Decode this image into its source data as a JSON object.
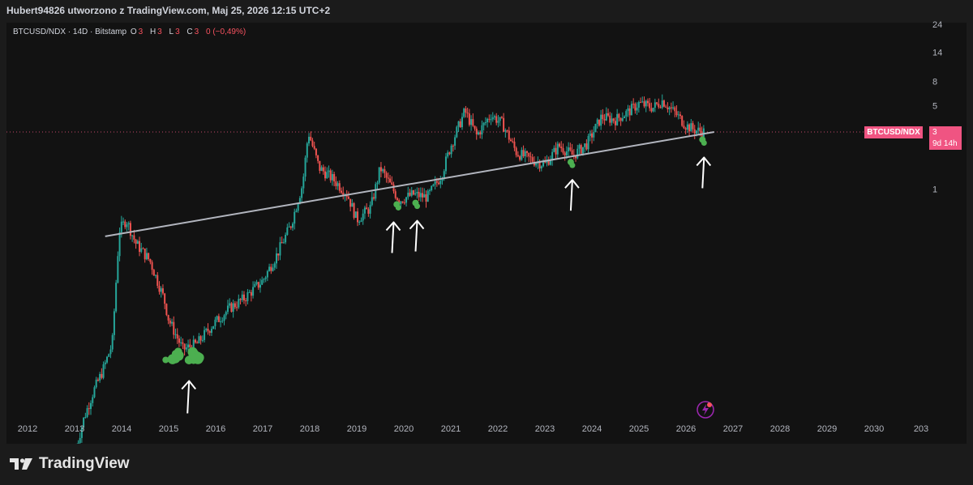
{
  "header": {
    "title": "Hubert94826 utworzono z TradingView.com, Maj 25, 2026 12:15 UTC+2"
  },
  "legend": {
    "symbol": "BTCUSD/NDX · 14D · Bitstamp",
    "open_label": "O",
    "open_value": "3",
    "high_label": "H",
    "high_value": "3",
    "low_label": "L",
    "low_value": "3",
    "close_label": "C",
    "close_value": "3",
    "change": "0 (−0,49%)"
  },
  "price_label": {
    "symbol": "BTCUSD/NDX",
    "price": "3",
    "countdown": "9d 14h"
  },
  "brand": {
    "name": "TradingView"
  },
  "colors": {
    "up": "#26a69a",
    "down": "#ef5350",
    "trendline": "#b2b5be",
    "marker": "#4caf50",
    "price_line": "#f05482",
    "label_bg": "#f05482"
  },
  "chart_data": {
    "type": "candlestick",
    "interval": "14D",
    "y_scale": "log",
    "y_ticks": [
      {
        "value": 24,
        "label": "24"
      },
      {
        "value": 14,
        "label": "14"
      },
      {
        "value": 8,
        "label": "8"
      },
      {
        "value": 5,
        "label": "5"
      },
      {
        "value": 3,
        "label": "3"
      },
      {
        "value": 1,
        "label": "1"
      }
    ],
    "x_ticks": [
      "2012",
      "2013",
      "2014",
      "2015",
      "2016",
      "2017",
      "2018",
      "2019",
      "2020",
      "2021",
      "2022",
      "2023",
      "2024",
      "2025",
      "2026",
      "2027",
      "2028",
      "2029",
      "2030",
      "203"
    ],
    "x_range": [
      2012,
      2031
    ],
    "price_line_value": 3,
    "price_path": [
      [
        2013.0,
        0.006
      ],
      [
        2013.2,
        0.012
      ],
      [
        2013.4,
        0.02
      ],
      [
        2013.6,
        0.03
      ],
      [
        2013.8,
        0.05
      ],
      [
        2013.95,
        0.45
      ],
      [
        2014.1,
        0.55
      ],
      [
        2014.3,
        0.35
      ],
      [
        2014.6,
        0.25
      ],
      [
        2014.9,
        0.12
      ],
      [
        2015.0,
        0.08
      ],
      [
        2015.3,
        0.045
      ],
      [
        2015.6,
        0.05
      ],
      [
        2015.9,
        0.07
      ],
      [
        2016.3,
        0.1
      ],
      [
        2016.6,
        0.12
      ],
      [
        2017.0,
        0.17
      ],
      [
        2017.3,
        0.28
      ],
      [
        2017.6,
        0.5
      ],
      [
        2017.85,
        1.1
      ],
      [
        2017.97,
        3.0
      ],
      [
        2018.2,
        1.5
      ],
      [
        2018.5,
        1.2
      ],
      [
        2018.8,
        0.9
      ],
      [
        2019.0,
        0.55
      ],
      [
        2019.3,
        0.7
      ],
      [
        2019.5,
        1.5
      ],
      [
        2019.7,
        1.1
      ],
      [
        2019.9,
        0.8
      ],
      [
        2020.2,
        0.9
      ],
      [
        2020.5,
        0.85
      ],
      [
        2020.8,
        1.3
      ],
      [
        2021.0,
        2.3
      ],
      [
        2021.3,
        4.5
      ],
      [
        2021.55,
        2.8
      ],
      [
        2021.85,
        4.2
      ],
      [
        2022.1,
        3.5
      ],
      [
        2022.4,
        2.0
      ],
      [
        2022.8,
        1.7
      ],
      [
        2023.0,
        1.6
      ],
      [
        2023.3,
        2.3
      ],
      [
        2023.6,
        1.9
      ],
      [
        2023.9,
        2.4
      ],
      [
        2024.2,
        4.0
      ],
      [
        2024.5,
        3.8
      ],
      [
        2024.8,
        4.5
      ],
      [
        2025.0,
        5.2
      ],
      [
        2025.3,
        4.8
      ],
      [
        2025.5,
        5.5
      ],
      [
        2025.8,
        4.2
      ],
      [
        2026.0,
        3.4
      ],
      [
        2026.2,
        3.1
      ],
      [
        2026.4,
        3.0
      ]
    ],
    "trendline": {
      "x0": 2013.65,
      "y0": 0.4,
      "x1": 2026.6,
      "y1": 3.0
    },
    "highlight_markers": [
      2015.35,
      2019.85,
      2020.25,
      2023.55,
      2026.35
    ],
    "arrows": [
      2015.4,
      2019.75,
      2020.25,
      2023.55,
      2026.35
    ]
  }
}
